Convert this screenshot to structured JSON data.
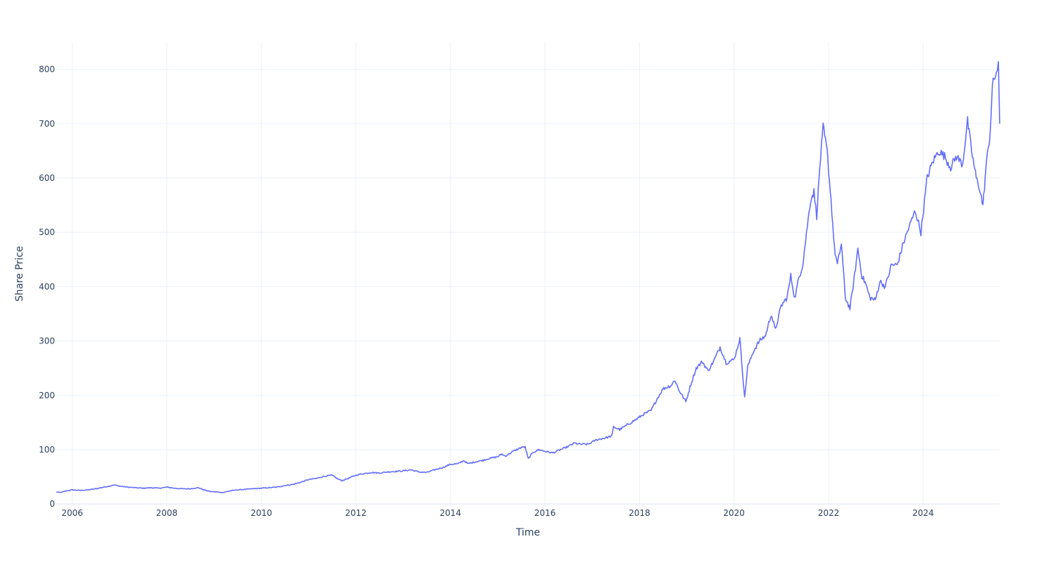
{
  "chart_data": {
    "type": "line",
    "xlabel": "Time",
    "ylabel": "Share Price",
    "x_tick_labels": [
      "2006",
      "2008",
      "2010",
      "2012",
      "2014",
      "2016",
      "2018",
      "2020",
      "2022",
      "2024"
    ],
    "y_tick_labels": [
      "0",
      "100",
      "200",
      "300",
      "400",
      "500",
      "600",
      "700",
      "800"
    ],
    "xlim": [
      "2005-08-31",
      "2025-08-15"
    ],
    "ylim": [
      -5,
      850
    ],
    "grid": true,
    "line_color": "#636efa",
    "series": [
      {
        "points": [
          [
            "2005-08-31",
            22
          ],
          [
            "2005-10-01",
            21
          ],
          [
            "2005-11-15",
            24
          ],
          [
            "2006-01-01",
            26
          ],
          [
            "2006-03-01",
            25
          ],
          [
            "2006-05-01",
            26
          ],
          [
            "2006-07-01",
            28
          ],
          [
            "2006-09-01",
            31
          ],
          [
            "2006-10-15",
            33
          ],
          [
            "2006-11-20",
            35
          ],
          [
            "2007-01-01",
            33
          ],
          [
            "2007-03-01",
            31
          ],
          [
            "2007-05-01",
            30
          ],
          [
            "2007-07-01",
            29
          ],
          [
            "2007-09-01",
            30
          ],
          [
            "2007-11-01",
            29
          ],
          [
            "2008-01-01",
            31
          ],
          [
            "2008-03-01",
            29
          ],
          [
            "2008-05-01",
            28
          ],
          [
            "2008-07-01",
            28
          ],
          [
            "2008-09-01",
            30
          ],
          [
            "2008-10-15",
            26
          ],
          [
            "2008-12-01",
            23
          ],
          [
            "2009-02-01",
            22
          ],
          [
            "2009-03-10",
            21
          ],
          [
            "2009-05-01",
            24
          ],
          [
            "2009-07-01",
            26
          ],
          [
            "2009-09-01",
            27
          ],
          [
            "2009-11-01",
            28
          ],
          [
            "2010-01-01",
            29
          ],
          [
            "2010-03-01",
            30
          ],
          [
            "2010-05-01",
            31
          ],
          [
            "2010-07-01",
            34
          ],
          [
            "2010-09-01",
            36
          ],
          [
            "2010-11-01",
            40
          ],
          [
            "2011-01-01",
            45
          ],
          [
            "2011-03-01",
            47
          ],
          [
            "2011-05-01",
            51
          ],
          [
            "2011-07-01",
            53
          ],
          [
            "2011-08-15",
            46
          ],
          [
            "2011-09-15",
            43
          ],
          [
            "2011-11-01",
            47
          ],
          [
            "2012-01-01",
            53
          ],
          [
            "2012-03-01",
            56
          ],
          [
            "2012-05-01",
            58
          ],
          [
            "2012-07-01",
            57
          ],
          [
            "2012-09-01",
            59
          ],
          [
            "2012-11-01",
            60
          ],
          [
            "2013-01-01",
            61
          ],
          [
            "2013-03-01",
            63
          ],
          [
            "2013-05-01",
            59
          ],
          [
            "2013-07-01",
            58
          ],
          [
            "2013-09-01",
            63
          ],
          [
            "2013-11-01",
            67
          ],
          [
            "2014-01-01",
            73
          ],
          [
            "2014-03-01",
            74
          ],
          [
            "2014-04-15",
            80
          ],
          [
            "2014-05-15",
            74
          ],
          [
            "2014-07-01",
            77
          ],
          [
            "2014-09-01",
            80
          ],
          [
            "2014-11-01",
            84
          ],
          [
            "2015-01-01",
            87
          ],
          [
            "2015-02-01",
            92
          ],
          [
            "2015-03-01",
            88
          ],
          [
            "2015-05-01",
            97
          ],
          [
            "2015-07-01",
            104
          ],
          [
            "2015-08-01",
            105
          ],
          [
            "2015-08-25",
            83
          ],
          [
            "2015-10-01",
            95
          ],
          [
            "2015-11-15",
            100
          ],
          [
            "2016-01-01",
            97
          ],
          [
            "2016-03-01",
            94
          ],
          [
            "2016-05-01",
            100
          ],
          [
            "2016-07-01",
            106
          ],
          [
            "2016-08-15",
            112
          ],
          [
            "2016-10-01",
            110
          ],
          [
            "2016-12-01",
            110
          ],
          [
            "2017-02-01",
            118
          ],
          [
            "2017-04-01",
            121
          ],
          [
            "2017-06-01",
            125
          ],
          [
            "2017-06-15",
            142
          ],
          [
            "2017-08-01",
            137
          ],
          [
            "2017-10-01",
            146
          ],
          [
            "2017-12-01",
            155
          ],
          [
            "2018-02-01",
            165
          ],
          [
            "2018-04-01",
            172
          ],
          [
            "2018-05-15",
            193
          ],
          [
            "2018-07-01",
            212
          ],
          [
            "2018-09-01",
            218
          ],
          [
            "2018-10-01",
            228
          ],
          [
            "2018-11-01",
            210
          ],
          [
            "2018-12-25",
            188
          ],
          [
            "2019-02-01",
            220
          ],
          [
            "2019-03-15",
            250
          ],
          [
            "2019-05-01",
            262
          ],
          [
            "2019-06-15",
            245
          ],
          [
            "2019-08-01",
            265
          ],
          [
            "2019-09-15",
            289
          ],
          [
            "2019-11-01",
            260
          ],
          [
            "2020-01-01",
            266
          ],
          [
            "2020-02-15",
            304
          ],
          [
            "2020-03-23",
            195
          ],
          [
            "2020-04-15",
            252
          ],
          [
            "2020-06-01",
            282
          ],
          [
            "2020-07-15",
            300
          ],
          [
            "2020-09-01",
            310
          ],
          [
            "2020-10-15",
            350
          ],
          [
            "2020-11-15",
            320
          ],
          [
            "2021-01-01",
            365
          ],
          [
            "2021-02-15",
            380
          ],
          [
            "2021-03-15",
            420
          ],
          [
            "2021-04-15",
            378
          ],
          [
            "2021-05-15",
            415
          ],
          [
            "2021-06-15",
            440
          ],
          [
            "2021-07-15",
            500
          ],
          [
            "2021-08-15",
            560
          ],
          [
            "2021-09-10",
            575
          ],
          [
            "2021-10-01",
            530
          ],
          [
            "2021-10-25",
            620
          ],
          [
            "2021-11-20",
            693
          ],
          [
            "2021-12-20",
            650
          ],
          [
            "2022-01-20",
            560
          ],
          [
            "2022-02-15",
            470
          ],
          [
            "2022-03-10",
            440
          ],
          [
            "2022-04-10",
            480
          ],
          [
            "2022-05-10",
            380
          ],
          [
            "2022-06-15",
            360
          ],
          [
            "2022-07-15",
            410
          ],
          [
            "2022-08-15",
            470
          ],
          [
            "2022-09-15",
            420
          ],
          [
            "2022-10-15",
            405
          ],
          [
            "2022-11-15",
            380
          ],
          [
            "2022-12-28",
            375
          ],
          [
            "2023-02-01",
            410
          ],
          [
            "2023-03-15",
            400
          ],
          [
            "2023-05-01",
            440
          ],
          [
            "2023-06-15",
            440
          ],
          [
            "2023-08-01",
            480
          ],
          [
            "2023-09-15",
            510
          ],
          [
            "2023-11-01",
            540
          ],
          [
            "2023-12-15",
            500
          ],
          [
            "2024-02-01",
            600
          ],
          [
            "2024-03-15",
            630
          ],
          [
            "2024-05-01",
            650
          ],
          [
            "2024-06-15",
            640
          ],
          [
            "2024-08-01",
            620
          ],
          [
            "2024-09-15",
            640
          ],
          [
            "2024-11-01",
            625
          ],
          [
            "2024-12-10",
            705
          ],
          [
            "2025-01-10",
            650
          ],
          [
            "2025-02-15",
            600
          ],
          [
            "2025-03-15",
            580
          ],
          [
            "2025-04-08",
            548
          ],
          [
            "2025-05-01",
            620
          ],
          [
            "2025-06-01",
            680
          ],
          [
            "2025-06-20",
            770
          ],
          [
            "2025-07-20",
            795
          ],
          [
            "2025-08-05",
            805
          ],
          [
            "2025-08-15",
            700
          ]
        ]
      }
    ]
  }
}
